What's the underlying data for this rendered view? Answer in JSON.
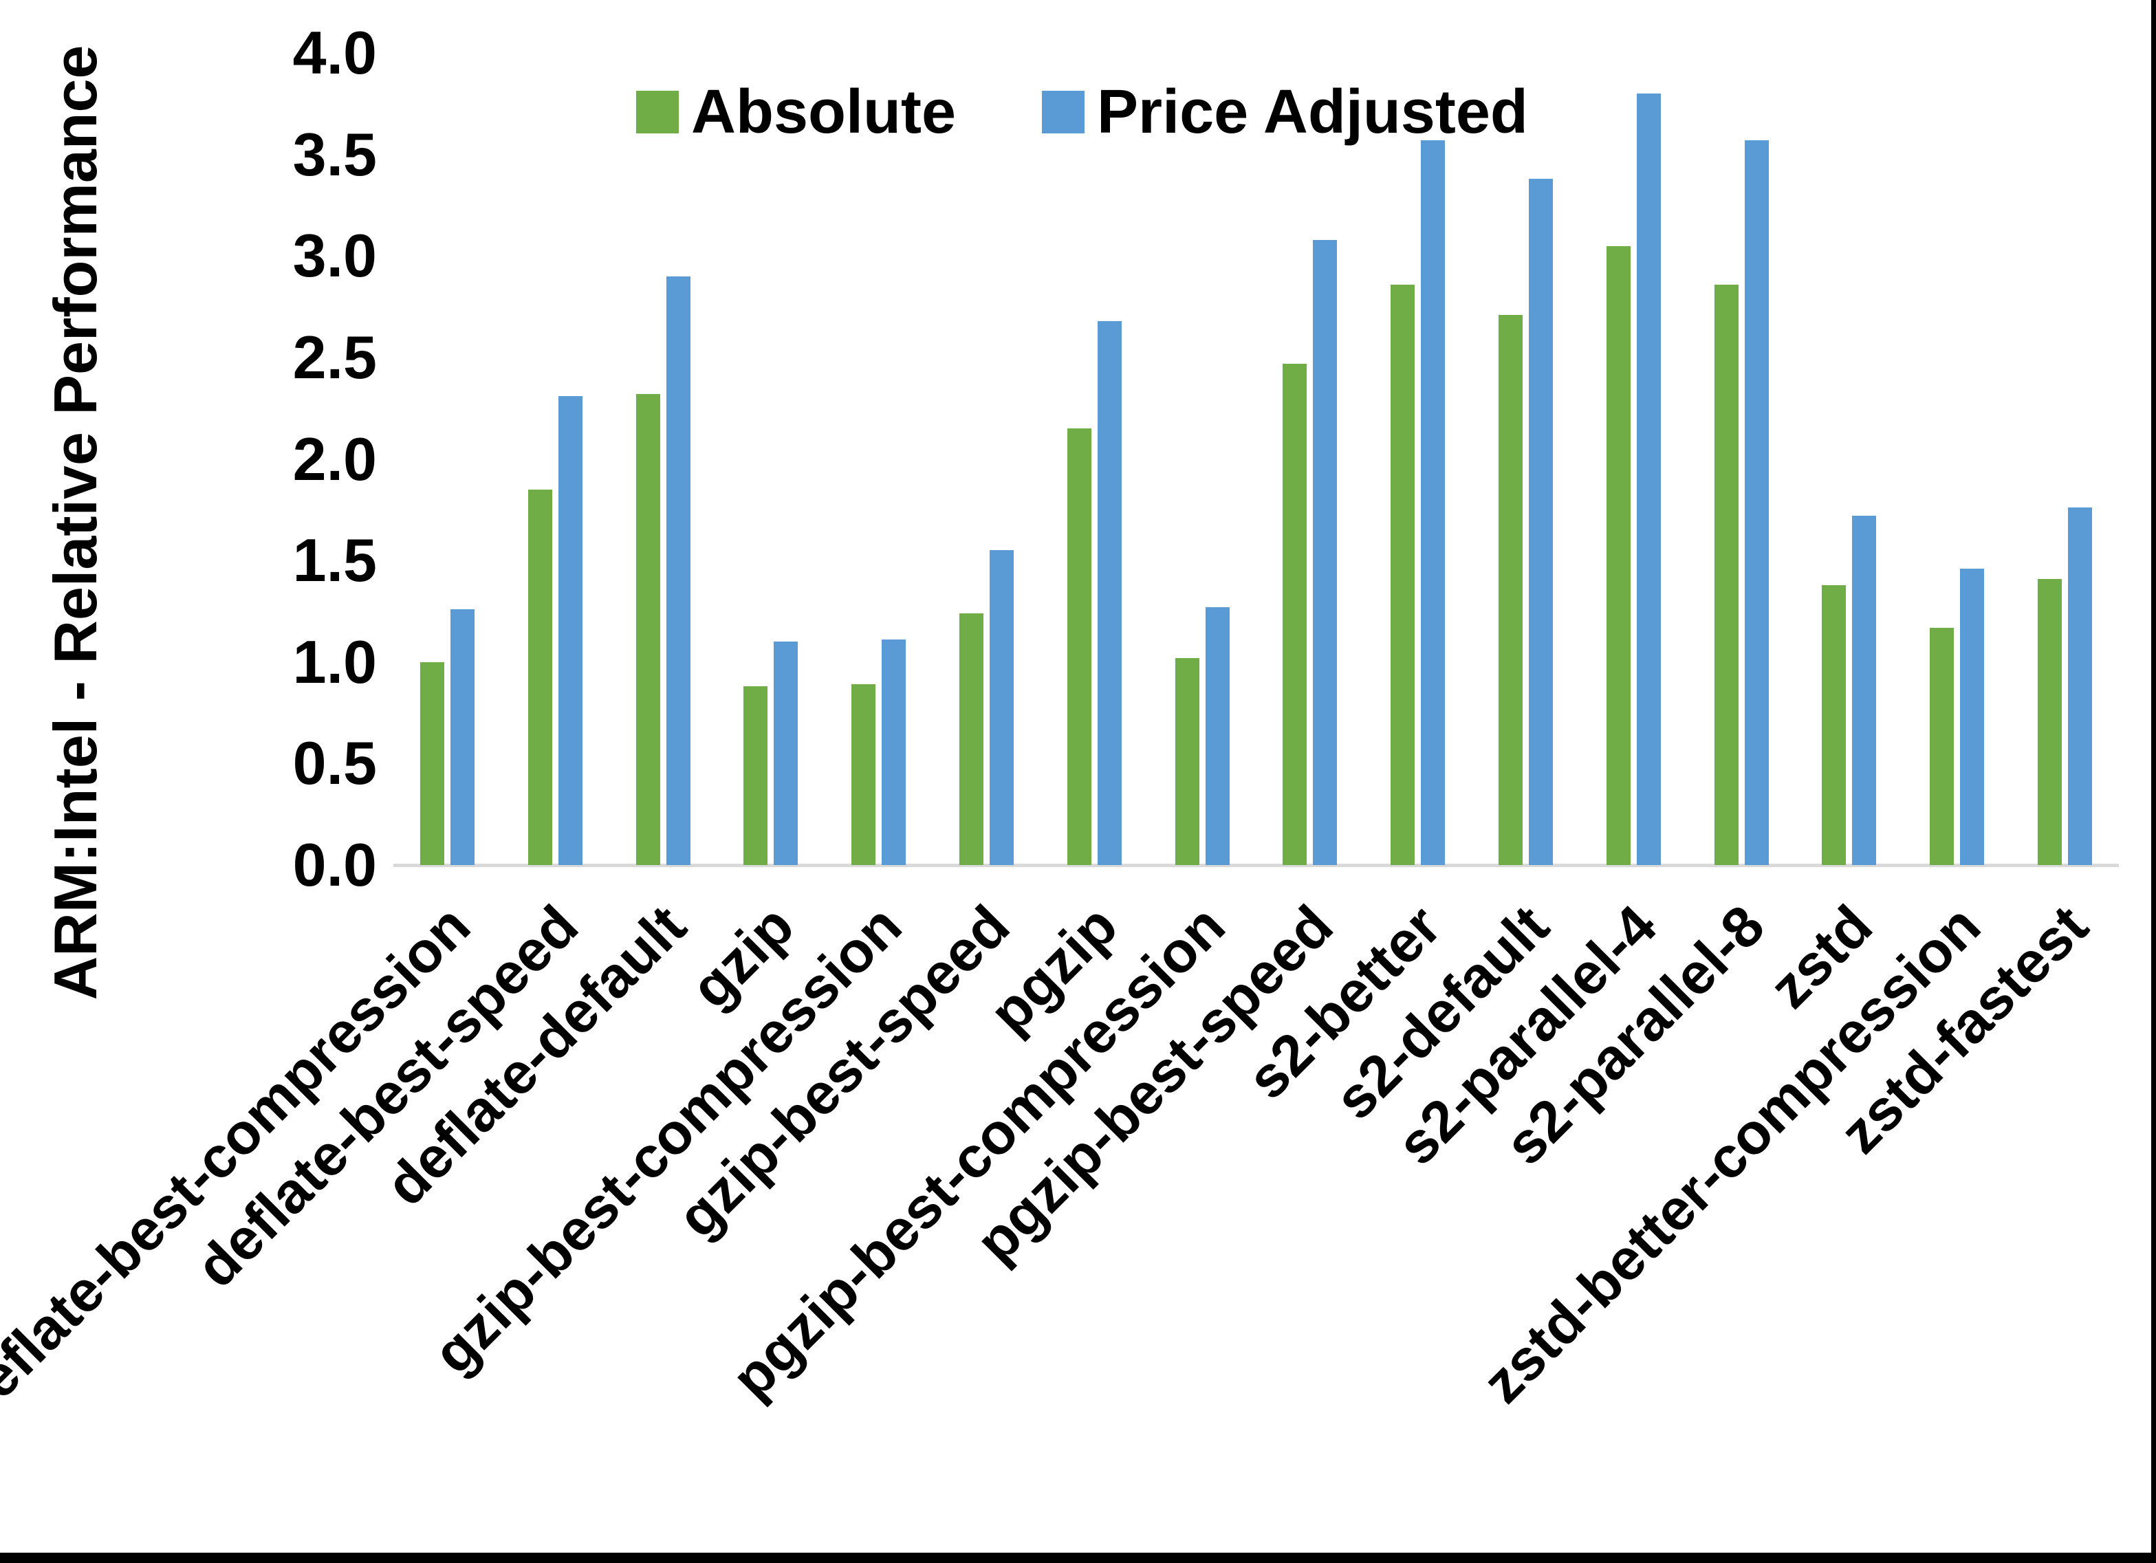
{
  "chart_data": {
    "type": "bar",
    "title": "",
    "ylabel": "ARM:Intel - Relative Performance",
    "xlabel": "",
    "ylim": [
      0.0,
      4.0
    ],
    "ytick_step": 0.5,
    "yticks": [
      "4.0",
      "3.5",
      "3.0",
      "2.5",
      "2.0",
      "1.5",
      "1.0",
      "0.5",
      "0.0"
    ],
    "grid": false,
    "legend_position": "top-center",
    "categories": [
      "deflate-best-compression",
      "deflate-best-speed",
      "deflate-default",
      "gzip",
      "gzip-best-compression",
      "gzip-best-speed",
      "pgzip",
      "pgzip-best-compression",
      "pgzip-best-speed",
      "s2-better",
      "s2-default",
      "s2-parallel-4",
      "s2-parallel-8",
      "zstd",
      "zstd-better-compression",
      "zstd-fastest"
    ],
    "series": [
      {
        "name": "Absolute",
        "color": "#70AD47",
        "values": [
          1.0,
          1.85,
          2.32,
          0.88,
          0.89,
          1.24,
          2.15,
          1.02,
          2.47,
          2.86,
          2.71,
          3.05,
          2.86,
          1.38,
          1.17,
          1.41
        ]
      },
      {
        "name": "Price Adjusted",
        "color": "#5B9BD5",
        "values": [
          1.26,
          2.31,
          2.9,
          1.1,
          1.11,
          1.55,
          2.68,
          1.27,
          3.08,
          3.57,
          3.38,
          3.8,
          3.57,
          1.72,
          1.46,
          1.76
        ]
      }
    ]
  },
  "colors": {
    "axis_line": "#D9D9D9",
    "text": "#000000",
    "frame": "#000000",
    "background": "#FFFFFF"
  }
}
